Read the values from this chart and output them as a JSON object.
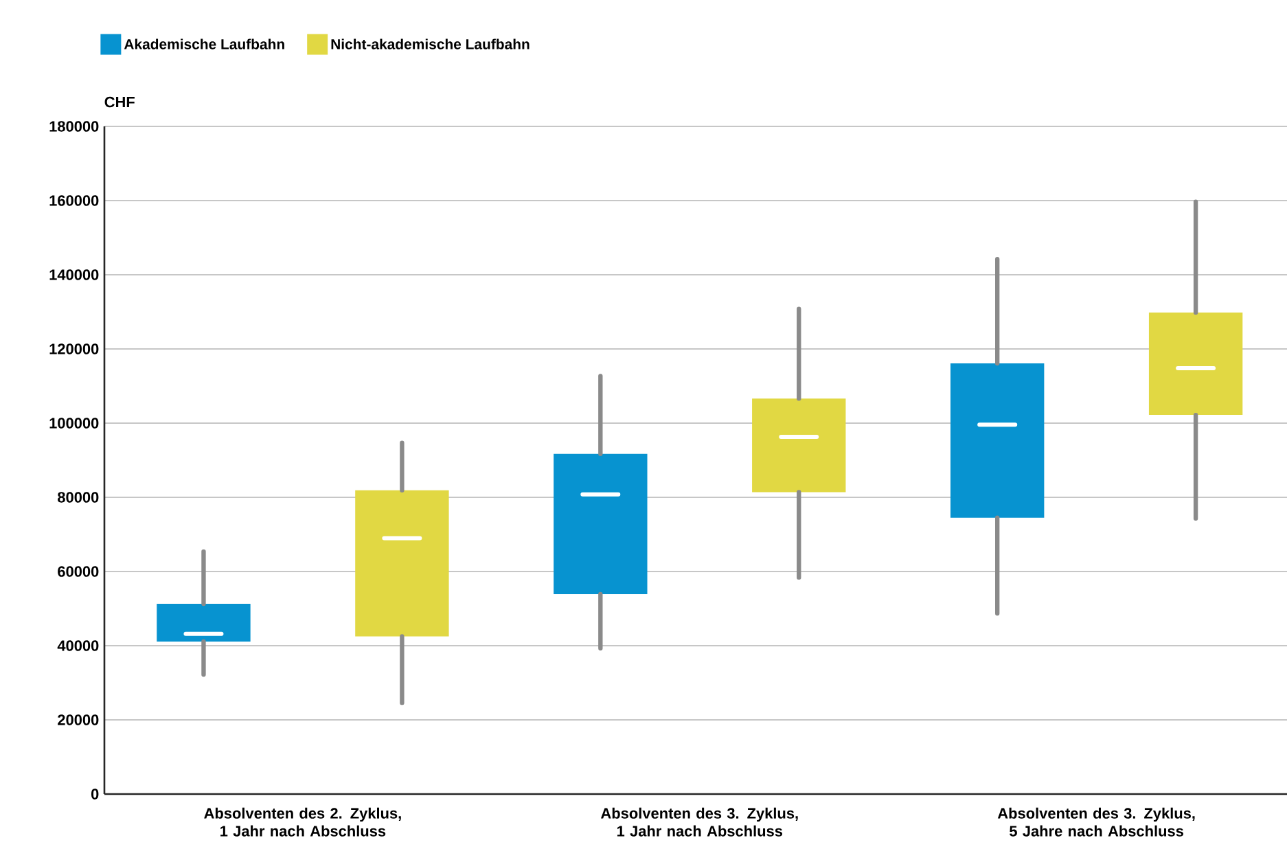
{
  "chart_data": {
    "type": "box",
    "categories": [
      "Absolventen des 2. Zyklus, 1 Jahr nach Abschluss",
      "Absolventen des 3. Zyklus, 1 Jahr nach Abschluss",
      "Absolventen des 3. Zyklus, 5 Jahre nach Abschluss"
    ],
    "ylabel": "CHF",
    "ylim": [
      0,
      180000
    ],
    "yticks": [
      0,
      20000,
      40000,
      60000,
      80000,
      100000,
      120000,
      140000,
      160000,
      180000
    ],
    "grid": "y",
    "legend": "top left",
    "series": [
      {
        "name": "Akademische Laufbahn",
        "color": "#0793d0",
        "boxes": [
          {
            "low": 32200,
            "q1": 41100,
            "median": 43200,
            "q3": 51300,
            "high": 65400
          },
          {
            "low": 39300,
            "q1": 53900,
            "median": 80800,
            "q3": 91700,
            "high": 112700
          },
          {
            "low": 48700,
            "q1": 74500,
            "median": 99600,
            "q3": 116100,
            "high": 144200
          }
        ]
      },
      {
        "name": "Nicht-akademische Laufbahn",
        "color": "#e1d843",
        "boxes": [
          {
            "low": 24600,
            "q1": 42500,
            "median": 69000,
            "q3": 81900,
            "high": 94700
          },
          {
            "low": 58400,
            "q1": 81400,
            "median": 96300,
            "q3": 106600,
            "high": 130800
          },
          {
            "low": 74300,
            "q1": 102200,
            "median": 114800,
            "q3": 129800,
            "high": 159700
          }
        ]
      }
    ]
  }
}
